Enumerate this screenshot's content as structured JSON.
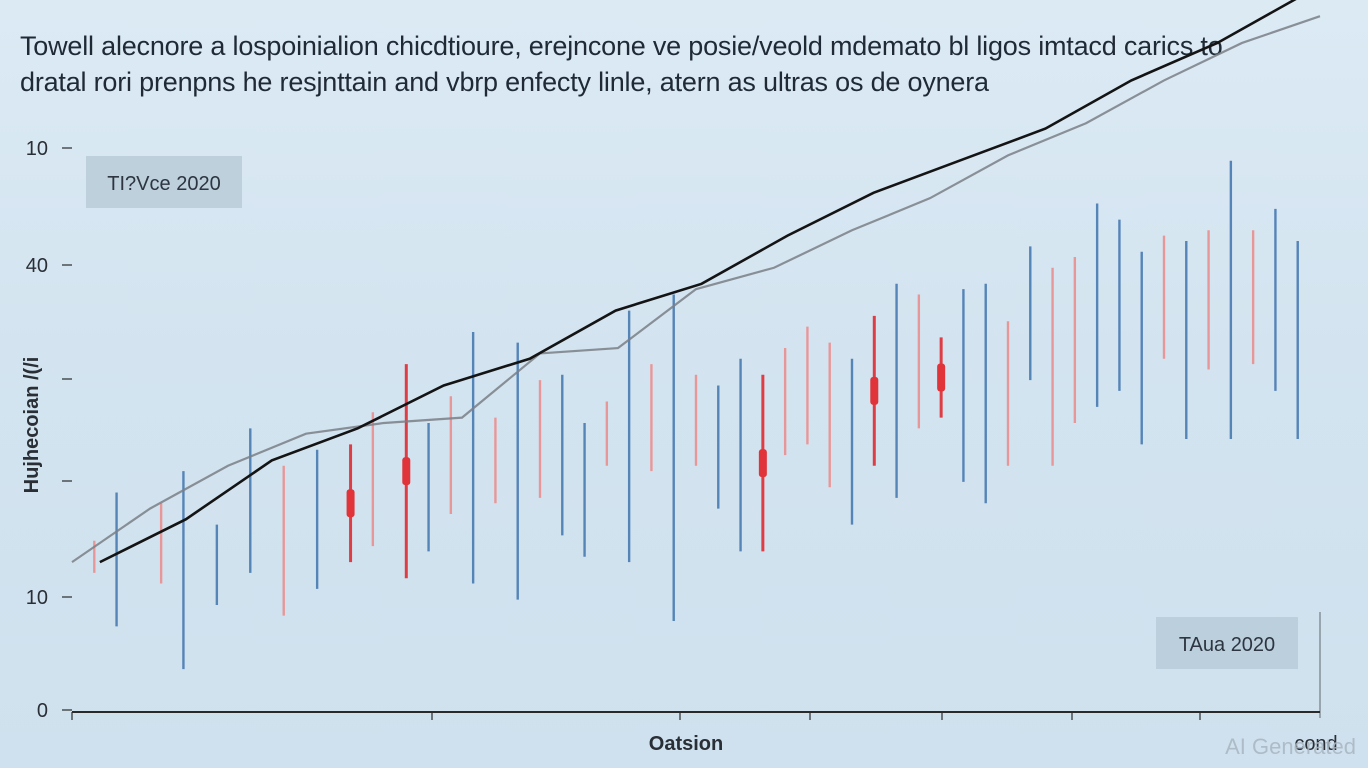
{
  "title_lines": [
    "Towell alecnore a lospoinialion chicdtioure, erejncone ve posie/veold mdemato bl ligos imtacd carics to",
    "dratal rori prenpns he resjnttain and vbrp enfecty linle, atern as ultras os de oynera"
  ],
  "watermark": "AI Generated",
  "colors": {
    "background": "#d6e7f2",
    "blue_stick": "#4f7fb5",
    "red_stick": "#e0343a",
    "pink_stick": "#ec8a8a",
    "trend": "#141414",
    "moving_average": "#7a7f86",
    "axis": "#2a2a2a",
    "label_box": "#b9cbd8"
  },
  "chart_data": {
    "type": "line",
    "title": "Towell alecnore a lospoinialion chicdtioure, erejncone ve posie/veold mdemato bl ligos imtacd carics to dratal rori prenpns he resjnttain and vbrp enfecty linle, atern as ultras os de oynera",
    "xlabel": "Oatsion",
    "xlabel_end": "cond",
    "ylabel": "Hujhecoian /(/i",
    "yticks": [
      "0",
      "10",
      "",
      "",
      "40",
      "10"
    ],
    "annotations": [
      "TI?Vce 2020",
      "TAua 2020"
    ],
    "grid": false,
    "series": [
      {
        "values": [
          2.8,
          3.6,
          4.7,
          5.3,
          6.1,
          6.6,
          7.5,
          8.0,
          8.9,
          9.7,
          10.3,
          10.9,
          11.8,
          12.5,
          13.4
        ]
      },
      {
        "values": [
          2.8,
          3.8,
          4.6,
          5.2,
          5.4,
          5.5,
          6.7,
          6.8,
          7.9,
          8.3,
          9.0,
          9.6,
          10.4,
          11.0,
          11.8,
          12.5,
          13.0
        ]
      }
    ],
    "sticks": [
      {
        "x": 0.02,
        "lo": 2.6,
        "hi": 3.2,
        "c": "pink"
      },
      {
        "x": 0.04,
        "lo": 1.6,
        "hi": 4.1,
        "c": "blue"
      },
      {
        "x": 0.08,
        "lo": 2.4,
        "hi": 3.9,
        "c": "pink"
      },
      {
        "x": 0.1,
        "lo": 0.8,
        "hi": 4.5,
        "c": "blue"
      },
      {
        "x": 0.13,
        "lo": 2.0,
        "hi": 3.5,
        "c": "blue"
      },
      {
        "x": 0.16,
        "lo": 2.6,
        "hi": 5.3,
        "c": "blue"
      },
      {
        "x": 0.19,
        "lo": 1.8,
        "hi": 4.6,
        "c": "pink"
      },
      {
        "x": 0.22,
        "lo": 2.3,
        "hi": 4.9,
        "c": "blue"
      },
      {
        "x": 0.25,
        "lo": 2.8,
        "hi": 5.0,
        "c": "red"
      },
      {
        "x": 0.27,
        "lo": 3.1,
        "hi": 5.6,
        "c": "pink"
      },
      {
        "x": 0.3,
        "lo": 2.5,
        "hi": 6.5,
        "c": "red"
      },
      {
        "x": 0.32,
        "lo": 3.0,
        "hi": 5.4,
        "c": "blue"
      },
      {
        "x": 0.34,
        "lo": 3.7,
        "hi": 5.9,
        "c": "pink"
      },
      {
        "x": 0.36,
        "lo": 2.4,
        "hi": 7.1,
        "c": "blue"
      },
      {
        "x": 0.38,
        "lo": 3.9,
        "hi": 5.5,
        "c": "pink"
      },
      {
        "x": 0.4,
        "lo": 2.1,
        "hi": 6.9,
        "c": "blue"
      },
      {
        "x": 0.42,
        "lo": 4.0,
        "hi": 6.2,
        "c": "pink"
      },
      {
        "x": 0.44,
        "lo": 3.3,
        "hi": 6.3,
        "c": "blue"
      },
      {
        "x": 0.46,
        "lo": 2.9,
        "hi": 5.4,
        "c": "blue"
      },
      {
        "x": 0.48,
        "lo": 4.6,
        "hi": 5.8,
        "c": "pink"
      },
      {
        "x": 0.5,
        "lo": 2.8,
        "hi": 7.5,
        "c": "blue"
      },
      {
        "x": 0.52,
        "lo": 4.5,
        "hi": 6.5,
        "c": "pink"
      },
      {
        "x": 0.54,
        "lo": 1.7,
        "hi": 7.8,
        "c": "blue"
      },
      {
        "x": 0.56,
        "lo": 4.6,
        "hi": 6.3,
        "c": "pink"
      },
      {
        "x": 0.58,
        "lo": 3.8,
        "hi": 6.1,
        "c": "blue"
      },
      {
        "x": 0.6,
        "lo": 3.0,
        "hi": 6.6,
        "c": "blue"
      },
      {
        "x": 0.62,
        "lo": 3.0,
        "hi": 6.3,
        "c": "red"
      },
      {
        "x": 0.64,
        "lo": 4.8,
        "hi": 6.8,
        "c": "pink"
      },
      {
        "x": 0.66,
        "lo": 5.0,
        "hi": 7.2,
        "c": "pink"
      },
      {
        "x": 0.68,
        "lo": 4.2,
        "hi": 6.9,
        "c": "pink"
      },
      {
        "x": 0.7,
        "lo": 3.5,
        "hi": 6.6,
        "c": "blue"
      },
      {
        "x": 0.72,
        "lo": 4.6,
        "hi": 7.4,
        "c": "red"
      },
      {
        "x": 0.74,
        "lo": 4.0,
        "hi": 8.0,
        "c": "blue"
      },
      {
        "x": 0.76,
        "lo": 5.3,
        "hi": 7.8,
        "c": "pink"
      },
      {
        "x": 0.78,
        "lo": 5.5,
        "hi": 7.0,
        "c": "red"
      },
      {
        "x": 0.8,
        "lo": 4.3,
        "hi": 7.9,
        "c": "blue"
      },
      {
        "x": 0.82,
        "lo": 3.9,
        "hi": 8.0,
        "c": "blue"
      },
      {
        "x": 0.84,
        "lo": 4.6,
        "hi": 7.3,
        "c": "pink"
      },
      {
        "x": 0.86,
        "lo": 6.2,
        "hi": 8.7,
        "c": "blue"
      },
      {
        "x": 0.88,
        "lo": 4.6,
        "hi": 8.3,
        "c": "pink"
      },
      {
        "x": 0.9,
        "lo": 5.4,
        "hi": 8.5,
        "c": "pink"
      },
      {
        "x": 0.92,
        "lo": 5.7,
        "hi": 9.5,
        "c": "blue"
      },
      {
        "x": 0.94,
        "lo": 6.0,
        "hi": 9.2,
        "c": "blue"
      },
      {
        "x": 0.96,
        "lo": 5.0,
        "hi": 8.6,
        "c": "blue"
      },
      {
        "x": 0.98,
        "lo": 6.6,
        "hi": 8.9,
        "c": "pink"
      },
      {
        "x": 1.0,
        "lo": 5.1,
        "hi": 8.8,
        "c": "blue"
      },
      {
        "x": 1.02,
        "lo": 6.4,
        "hi": 9.0,
        "c": "pink"
      },
      {
        "x": 1.04,
        "lo": 5.1,
        "hi": 10.3,
        "c": "blue"
      },
      {
        "x": 1.06,
        "lo": 6.5,
        "hi": 9.0,
        "c": "pink"
      },
      {
        "x": 1.08,
        "lo": 6.0,
        "hi": 9.4,
        "c": "blue"
      },
      {
        "x": 1.1,
        "lo": 5.1,
        "hi": 8.8,
        "c": "blue"
      }
    ]
  }
}
